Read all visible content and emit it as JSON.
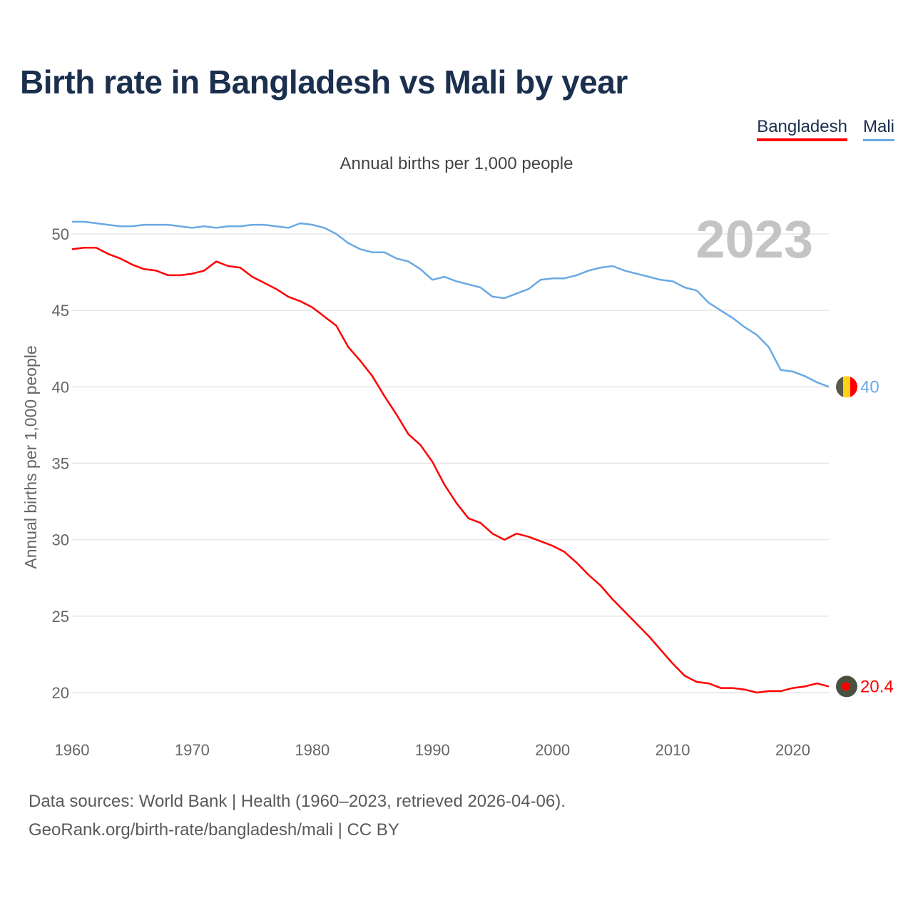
{
  "title": "Birth rate in Bangladesh vs Mali by year",
  "legend": [
    {
      "name": "Bangladesh",
      "color": "#ff0000"
    },
    {
      "name": "Mali",
      "color": "#6aa9e4"
    }
  ],
  "subtitle": "Annual births per 1,000 people",
  "footer": {
    "line1": "Data sources: World Bank | Health (1960–2023, retrieved 2026-04-06).",
    "line2": "GeoRank.org/birth-rate/bangladesh/mali | CC BY"
  },
  "chart_data": {
    "type": "line",
    "title": "Birth rate in Bangladesh vs Mali by year",
    "ylabel": "Annual births per 1,000 people",
    "xlabel": "",
    "year_label": "2023",
    "xlim": [
      1960,
      2023
    ],
    "ylim": [
      18,
      52
    ],
    "x_ticks": [
      "1960",
      "1970",
      "1980",
      "1990",
      "2000",
      "2010",
      "2020"
    ],
    "y_ticks": [
      "20",
      "25",
      "30",
      "35",
      "40",
      "45",
      "50"
    ],
    "grid": true,
    "x": [
      1960,
      1961,
      1962,
      1963,
      1964,
      1965,
      1966,
      1967,
      1968,
      1969,
      1970,
      1971,
      1972,
      1973,
      1974,
      1975,
      1976,
      1977,
      1978,
      1979,
      1980,
      1981,
      1982,
      1983,
      1984,
      1985,
      1986,
      1987,
      1988,
      1989,
      1990,
      1991,
      1992,
      1993,
      1994,
      1995,
      1996,
      1997,
      1998,
      1999,
      2000,
      2001,
      2002,
      2003,
      2004,
      2005,
      2006,
      2007,
      2008,
      2009,
      2010,
      2011,
      2012,
      2013,
      2014,
      2015,
      2016,
      2017,
      2018,
      2019,
      2020,
      2021,
      2022,
      2023
    ],
    "series": [
      {
        "name": "Mali",
        "color": "#6aa9e4",
        "end_label": "40",
        "values": [
          50.8,
          50.8,
          50.7,
          50.6,
          50.5,
          50.5,
          50.6,
          50.6,
          50.6,
          50.5,
          50.4,
          50.5,
          50.4,
          50.5,
          50.5,
          50.6,
          50.6,
          50.5,
          50.4,
          50.7,
          50.6,
          50.4,
          50.0,
          49.4,
          49.0,
          48.8,
          48.8,
          48.4,
          48.2,
          47.7,
          47.0,
          47.2,
          46.9,
          46.7,
          46.5,
          45.9,
          45.8,
          46.1,
          46.4,
          47.0,
          47.1,
          47.1,
          47.3,
          47.6,
          47.8,
          47.9,
          47.6,
          47.4,
          47.2,
          47.0,
          46.9,
          46.5,
          46.3,
          45.5,
          45.0,
          44.5,
          43.9,
          43.4,
          42.6,
          41.1,
          41.0,
          40.7,
          40.3,
          40.0
        ]
      },
      {
        "name": "Bangladesh",
        "color": "#ff0000",
        "end_label": "20.4",
        "values": [
          49.0,
          49.1,
          49.1,
          48.7,
          48.4,
          48.0,
          47.7,
          47.6,
          47.3,
          47.3,
          47.4,
          47.6,
          48.2,
          47.9,
          47.8,
          47.2,
          46.8,
          46.4,
          45.9,
          45.6,
          45.2,
          44.6,
          44.0,
          42.6,
          41.7,
          40.7,
          39.4,
          38.2,
          36.9,
          36.2,
          35.1,
          33.6,
          32.4,
          31.4,
          31.1,
          30.4,
          30.0,
          30.4,
          30.2,
          29.9,
          29.6,
          29.2,
          28.5,
          27.7,
          27.0,
          26.1,
          25.3,
          24.5,
          23.7,
          22.8,
          21.9,
          21.1,
          20.7,
          20.6,
          20.3,
          20.3,
          20.2,
          20.0,
          20.1,
          20.1,
          20.3,
          20.4,
          20.6,
          20.4
        ]
      }
    ]
  }
}
